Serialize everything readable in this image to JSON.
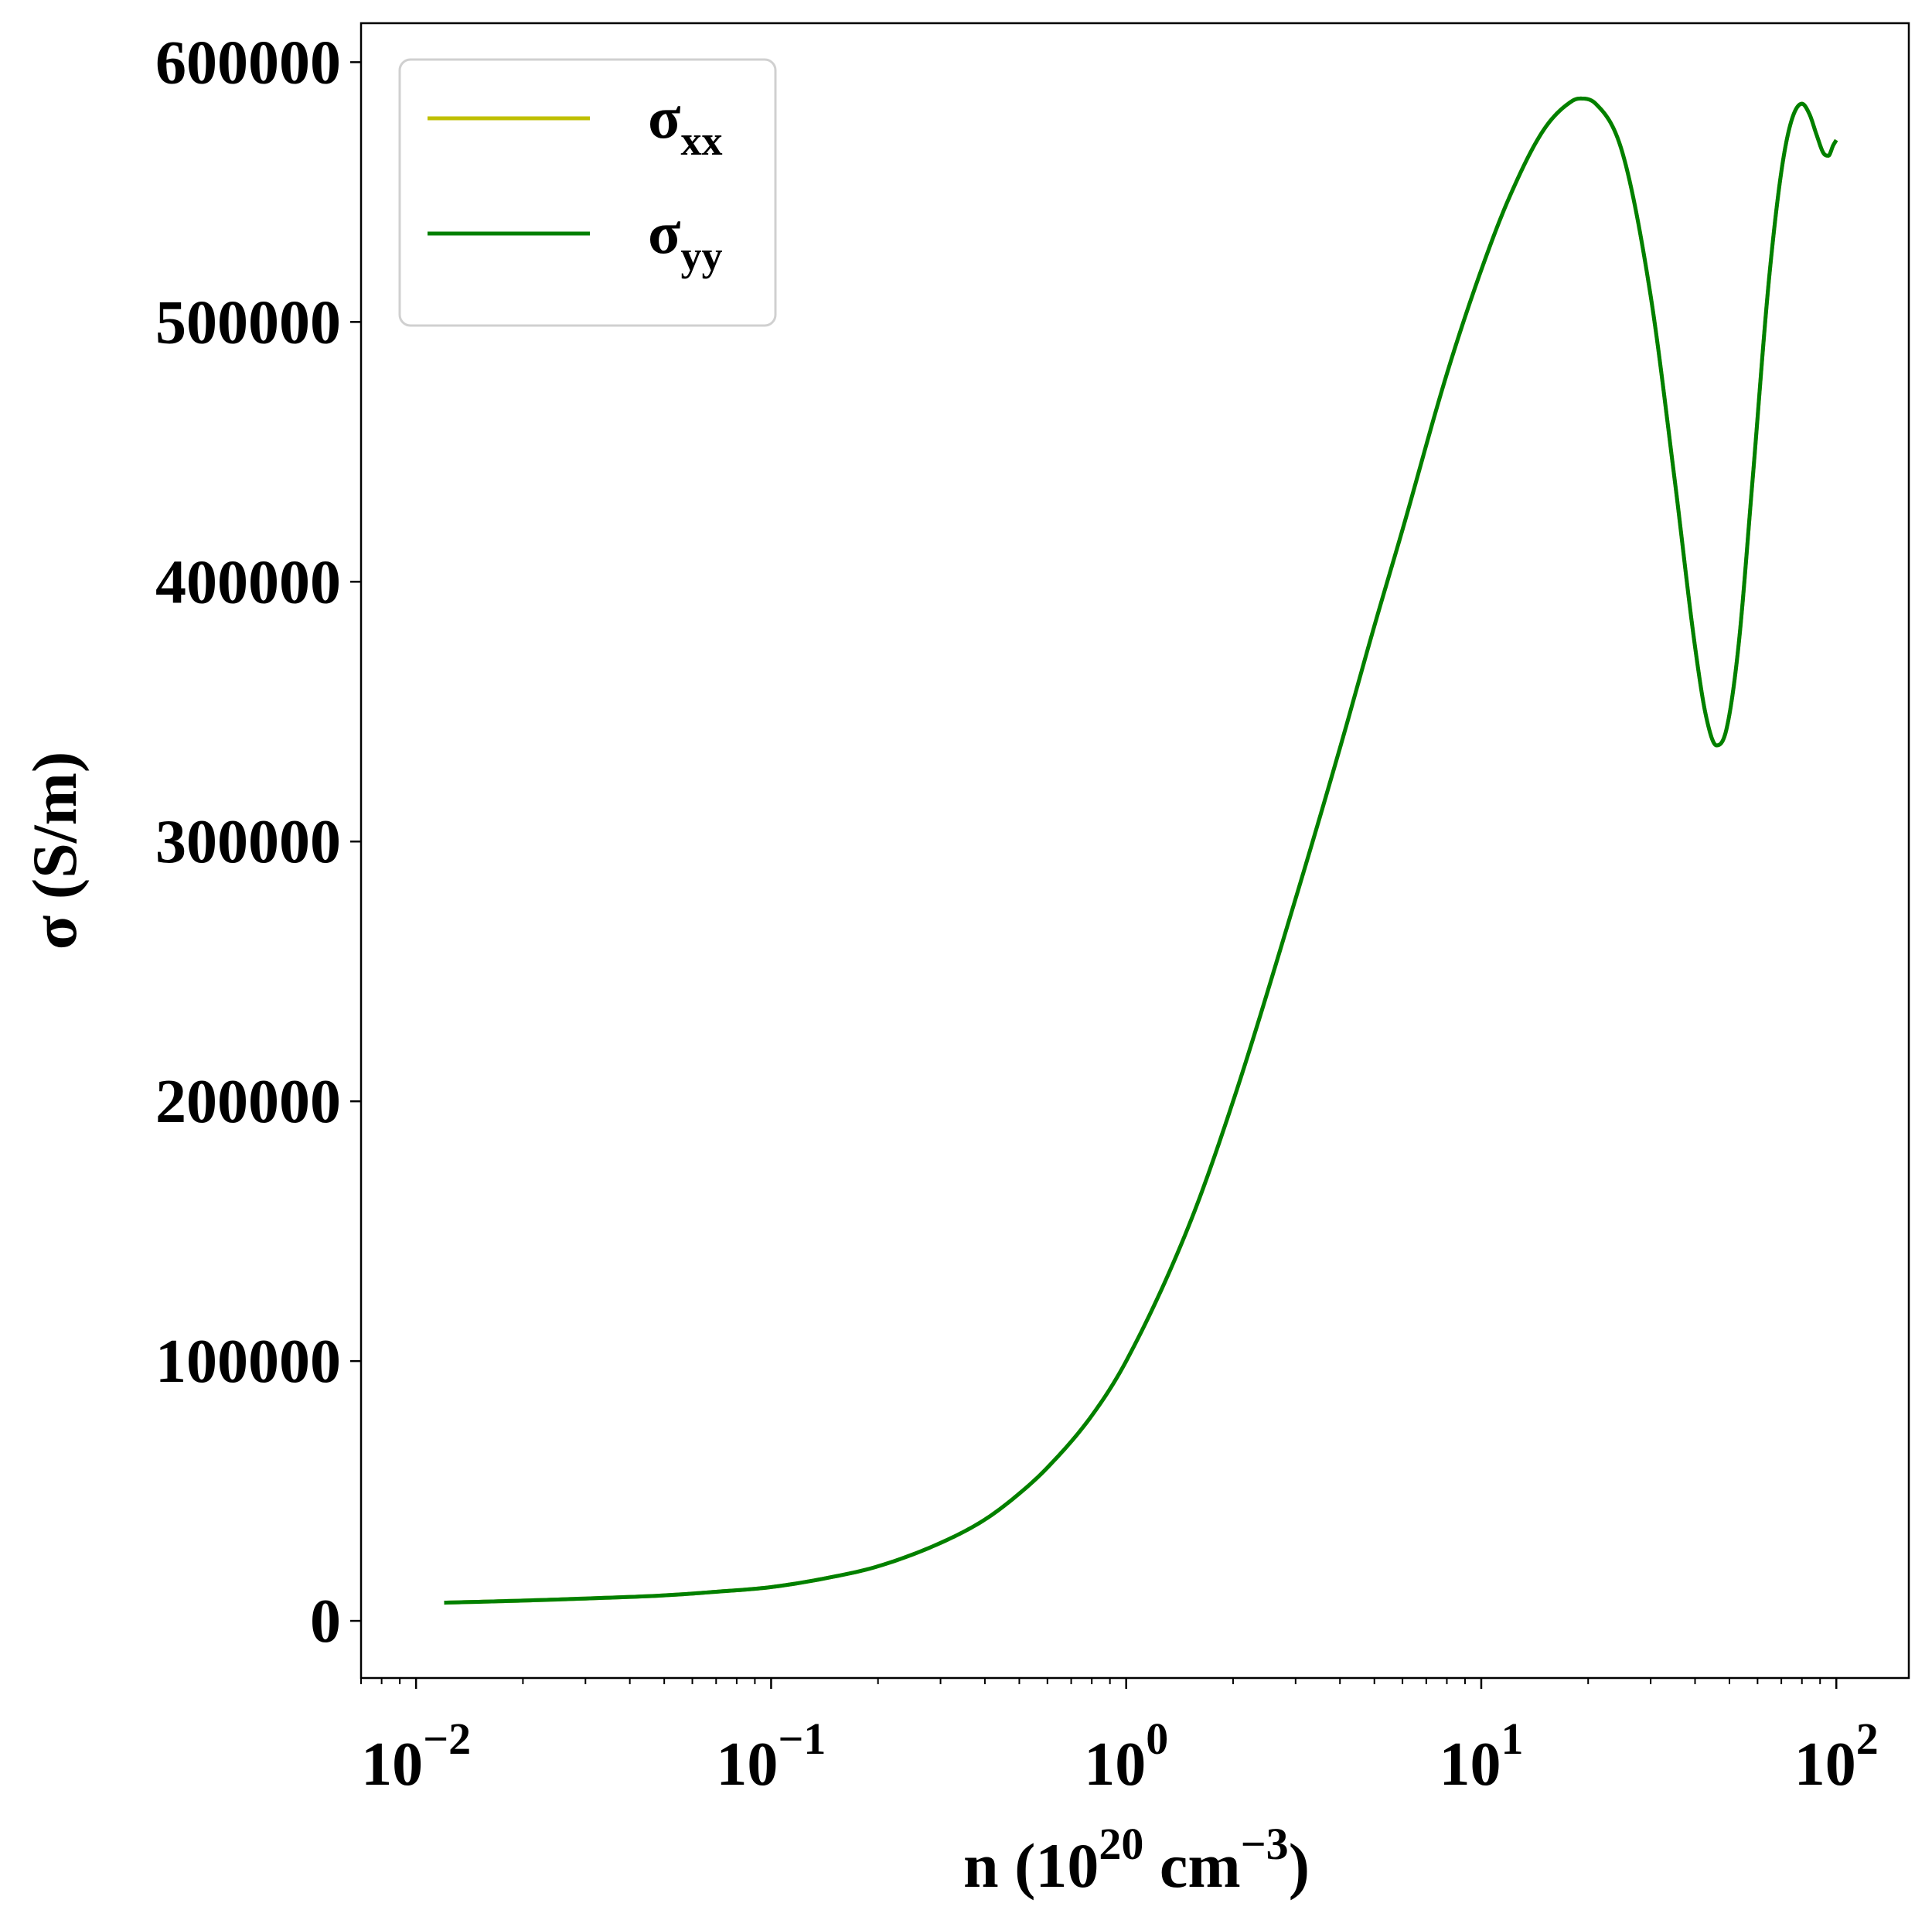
{
  "chart_data": {
    "type": "line",
    "xscale": "log",
    "xlim": [
      0.007,
      160
    ],
    "ylim": [
      -22000,
      615000
    ],
    "grid": false,
    "legend_position": "upper left",
    "xlabel": {
      "base": "n (10",
      "sup1": "20",
      "mid": " cm",
      "sup2": "−3",
      "end": ")"
    },
    "ylabel": "σ (S/m)",
    "y_ticks": [
      0,
      100000,
      200000,
      300000,
      400000,
      500000,
      600000
    ],
    "y_tick_labels": [
      "0",
      "100000",
      "200000",
      "300000",
      "400000",
      "500000",
      "600000"
    ],
    "x_ticks": [
      {
        "value": 0.01,
        "base": "10",
        "exp": "−2"
      },
      {
        "value": 0.1,
        "base": "10",
        "exp": "−1"
      },
      {
        "value": 1,
        "base": "10",
        "exp": "0"
      },
      {
        "value": 10,
        "base": "10",
        "exp": "1"
      },
      {
        "value": 100,
        "base": "10",
        "exp": "2"
      }
    ],
    "series": [
      {
        "name": "σxx",
        "label_main": "σ",
        "label_sub": "xx",
        "color": "#bfbf00",
        "x": [
          0.012,
          0.02,
          0.03,
          0.05,
          0.07,
          0.1,
          0.15,
          0.2,
          0.3,
          0.4,
          0.5,
          0.6,
          0.8,
          1.0,
          1.5,
          2.0,
          3.0,
          4.0,
          5.0,
          6.0,
          8.0,
          10.0,
          12.0,
          15.0,
          18.0,
          19.0,
          21.0,
          25.0,
          30.0,
          35.0,
          40.0,
          43.0,
          46.0,
          49.0,
          53.0,
          58.0,
          65.0,
          72.0,
          80.0,
          84.0,
          88.0,
          92.0,
          95.0,
          98.0,
          100.0
        ],
        "y": [
          7000,
          7800,
          8600,
          9800,
          11200,
          13000,
          17000,
          21000,
          30000,
          39000,
          49000,
          59000,
          79000,
          100000,
          152000,
          200000,
          278000,
          336000,
          383000,
          420000,
          480000,
          520000,
          548000,
          574000,
          585000,
          586000,
          584000,
          565000,
          510000,
          440000,
          375000,
          348000,
          337000,
          343000,
          375000,
          438000,
          520000,
          568000,
          584000,
          580000,
          572000,
          565000,
          564000,
          568000,
          570000
        ]
      },
      {
        "name": "σyy",
        "label_main": "σ",
        "label_sub": "yy",
        "color": "#008000",
        "x": [
          0.012,
          0.02,
          0.03,
          0.05,
          0.07,
          0.1,
          0.15,
          0.2,
          0.3,
          0.4,
          0.5,
          0.6,
          0.8,
          1.0,
          1.5,
          2.0,
          3.0,
          4.0,
          5.0,
          6.0,
          8.0,
          10.0,
          12.0,
          15.0,
          18.0,
          19.0,
          21.0,
          25.0,
          30.0,
          35.0,
          40.0,
          43.0,
          46.0,
          49.0,
          53.0,
          58.0,
          65.0,
          72.0,
          80.0,
          84.0,
          88.0,
          92.0,
          95.0,
          98.0,
          100.0
        ],
        "y": [
          7000,
          7800,
          8600,
          9800,
          11200,
          13000,
          17000,
          21000,
          30000,
          39000,
          49000,
          59000,
          79000,
          100000,
          152000,
          200000,
          278000,
          336000,
          383000,
          420000,
          480000,
          520000,
          548000,
          574000,
          585000,
          586000,
          584000,
          565000,
          510000,
          440000,
          375000,
          348000,
          337000,
          343000,
          375000,
          438000,
          520000,
          568000,
          584000,
          580000,
          572000,
          565000,
          564000,
          568000,
          570000
        ]
      }
    ]
  }
}
